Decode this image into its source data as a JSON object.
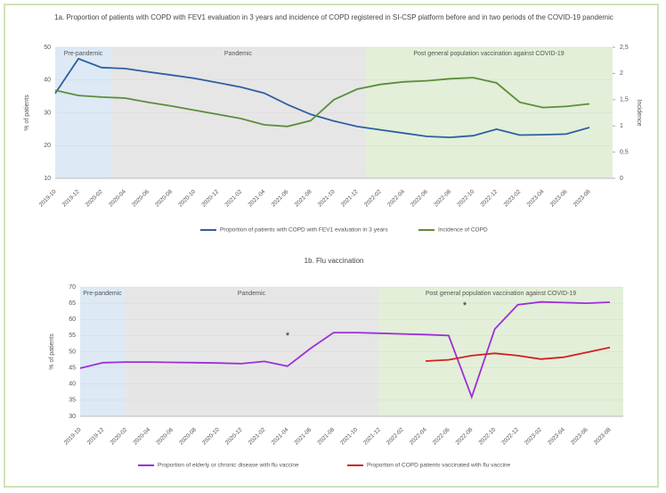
{
  "chart_data": [
    {
      "type": "line",
      "title": "1a. Proportion of patients with COPD with FEV1 evaluation in 3 years and incidence of COPD registered in SI-CSP platform before and in two periods of the COVID-19 pandemic",
      "ylabel": "% of patients",
      "y2label": "Incidence",
      "regions": [
        "Pre-pandemic",
        "Pandemic",
        "Post general population vaccination against COVID-19"
      ],
      "categories": [
        "2019-10",
        "2019-12",
        "2020-02",
        "2020-04",
        "2020-06",
        "2020-08",
        "2020-10",
        "2020-12",
        "2021-02",
        "2021-04",
        "2021-06",
        "2021-08",
        "2021-10",
        "2021-12",
        "2022-02",
        "2022-04",
        "2022-06",
        "2022-08",
        "2022-10",
        "2022-12",
        "2023-02",
        "2023-04",
        "2023-06",
        "2023-08"
      ],
      "ylim": [
        10,
        50
      ],
      "yticks": [
        10,
        20,
        30,
        40,
        50
      ],
      "y2lim": [
        0,
        2.5
      ],
      "y2ticks": [
        0,
        {
          "value": 0.5,
          "label": "0,5"
        },
        1,
        {
          "value": 1.5,
          "label": "1,5"
        },
        2,
        {
          "value": 2.5,
          "label": "2,5"
        }
      ],
      "series": [
        {
          "name": "Proportion of patients with COPD with FEV1 evaluation in 3 years",
          "color": "#2e5fa3",
          "values": [
            35.9,
            46.5,
            43.8,
            43.5,
            42.5,
            41.5,
            40.5,
            39.2,
            37.8,
            36,
            32.5,
            29.5,
            27.5,
            25.8,
            24.8,
            23.8,
            22.8,
            22.5,
            23,
            25,
            23.2,
            23.3,
            23.5,
            25.5
          ]
        },
        {
          "name": "Incidence of COPD",
          "color": "#5b8e3a",
          "axis": "y2",
          "values": [
            1.68,
            1.58,
            1.55,
            1.53,
            1.45,
            1.38,
            1.3,
            1.22,
            1.14,
            1.02,
            0.99,
            1.1,
            1.5,
            1.7,
            1.79,
            1.84,
            1.86,
            1.9,
            1.92,
            1.82,
            1.45,
            1.35,
            1.37,
            1.42
          ]
        }
      ]
    },
    {
      "type": "line",
      "title": "1b. Flu vaccination",
      "ylabel": "% of patients",
      "regions": [
        "Pre-pandemic",
        "Pandemic",
        "Post general population vaccination against COVID-19"
      ],
      "annotations": [
        "*",
        "*"
      ],
      "categories": [
        "2019-10",
        "2019-12",
        "2020-02",
        "2020-04",
        "2020-06",
        "2020-08",
        "2020-10",
        "2020-12",
        "2021-02",
        "2021-04",
        "2021-06",
        "2021-08",
        "2021-10",
        "2021-12",
        "2022-02",
        "2022-04",
        "2022-06",
        "2022-08",
        "2022-10",
        "2022-12",
        "2023-02",
        "2023-04",
        "2023-06",
        "2023-08"
      ],
      "ylim": [
        30,
        70
      ],
      "yticks": [
        30,
        35,
        40,
        45,
        50,
        55,
        60,
        65,
        70
      ],
      "series": [
        {
          "name": "Proportion of elderly or chronic disease with flu vaccine",
          "color": "#9b30d9",
          "values": [
            44.9,
            46.6,
            46.8,
            46.8,
            46.7,
            46.6,
            46.5,
            46.3,
            47,
            45.5,
            51,
            55.9,
            55.9,
            55.7,
            55.5,
            55.3,
            55,
            36,
            57,
            64.5,
            65.4,
            65.2,
            65,
            65.3
          ]
        },
        {
          "name": "Proportion of COPD patients vaccinated with flu vaccine",
          "color": "#d42020",
          "values": [
            null,
            null,
            null,
            null,
            null,
            null,
            null,
            null,
            null,
            null,
            null,
            null,
            null,
            null,
            null,
            47.1,
            47.5,
            48.8,
            49.5,
            48.8,
            47.7,
            48.3,
            49.8,
            51.3
          ]
        }
      ]
    }
  ]
}
